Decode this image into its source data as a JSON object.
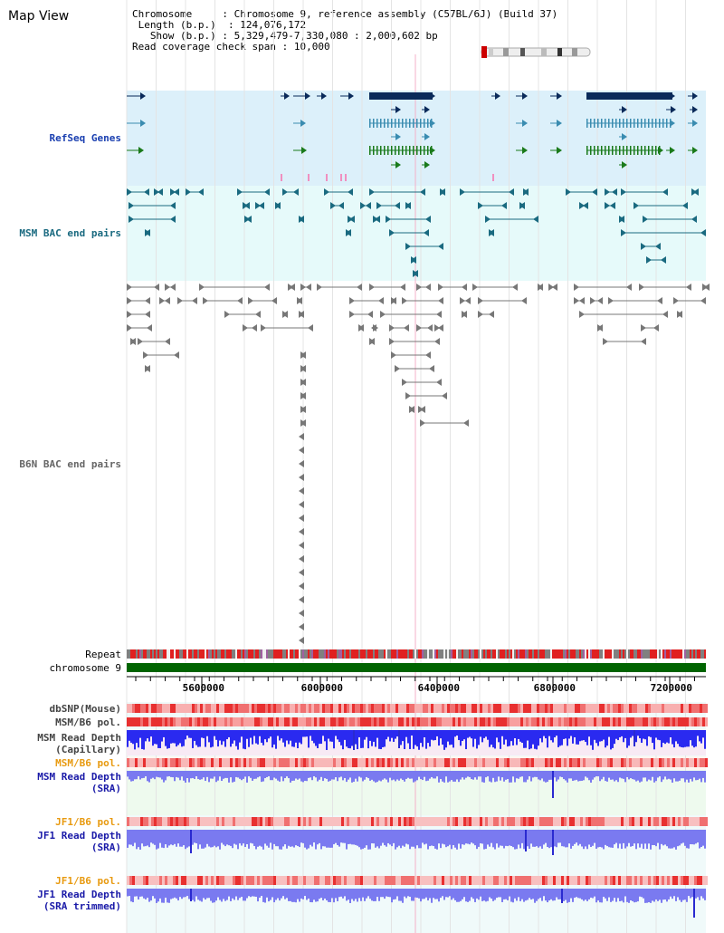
{
  "page": {
    "title": "Map View",
    "info": {
      "chromosome_label": "Chromosome",
      "chromosome_value": "Chromosome 9, reference assembly (C57BL/6J) (Build 37)",
      "length_label": "Length (b.p.)",
      "length_value": "124,076,172",
      "show_label": "Show (b.p.)",
      "show_value": "5,329,479-7,330,080 : 2,000,602 bp",
      "span_label": "Read coverage check span",
      "span_value": "10,000"
    }
  },
  "tracks": {
    "refseq": "RefSeq Genes",
    "msm_bac": "MSM BAC end pairs",
    "b6n_bac": "B6N BAC end pairs",
    "repeat": "Repeat",
    "chromosome": "chromosome 9",
    "dbsnp": "dbSNP(Mouse)",
    "msm_b6_pol_1": "MSM/B6 pol.",
    "msm_read_depth_cap_1": "MSM Read Depth",
    "msm_read_depth_cap_2": "(Capillary)",
    "msm_b6_pol_2": "MSM/B6 pol.",
    "msm_read_depth_sra_1": "MSM Read Depth",
    "msm_read_depth_sra_2": "(SRA)",
    "jf1_b6_pol_1": "JF1/B6 pol.",
    "jf1_read_depth_sra_1": "JF1 Read Depth",
    "jf1_read_depth_sra_2": "(SRA)",
    "jf1_b6_pol_2": "JF1/B6 pol.",
    "jf1_read_depth_trim_1": "JF1 Read Depth",
    "jf1_read_depth_trim_2": "(SRA trimmed)"
  },
  "axis": {
    "ticks": [
      "5600000",
      "6000000",
      "6400000",
      "6800000",
      "7200000"
    ]
  },
  "colors": {
    "refseq_bg": "#dcf0fa",
    "msm_bg": "#e6fafa",
    "coverage_bg": "#f0fafa",
    "chromosome_bar": "#006400",
    "gene_dark": "#0a2a5a",
    "gene_mid": "#3a8cb0",
    "gene_green": "#1a7a1a",
    "bac_teal": "#1a6a80",
    "bac_grey": "#777777",
    "snp_red": "#e03030",
    "depth_blue": "#2a2af0",
    "depth_light": "#7a7af0"
  }
}
